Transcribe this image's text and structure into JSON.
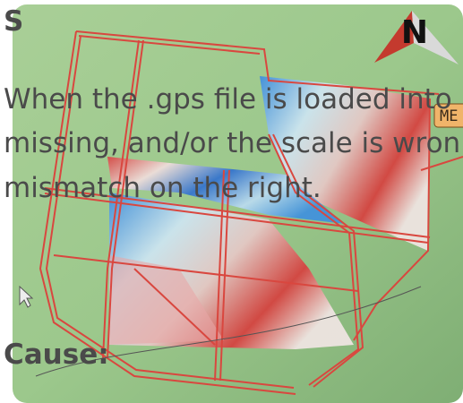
{
  "header": {
    "title": "S"
  },
  "image": {
    "compass_label": "N",
    "marker_label": "ME"
  },
  "body": {
    "lines": [
      "When the .gps file is loaded into",
      "missing, and/or the scale is wron",
      "mismatch on the right."
    ],
    "heading": "Cause:"
  }
}
